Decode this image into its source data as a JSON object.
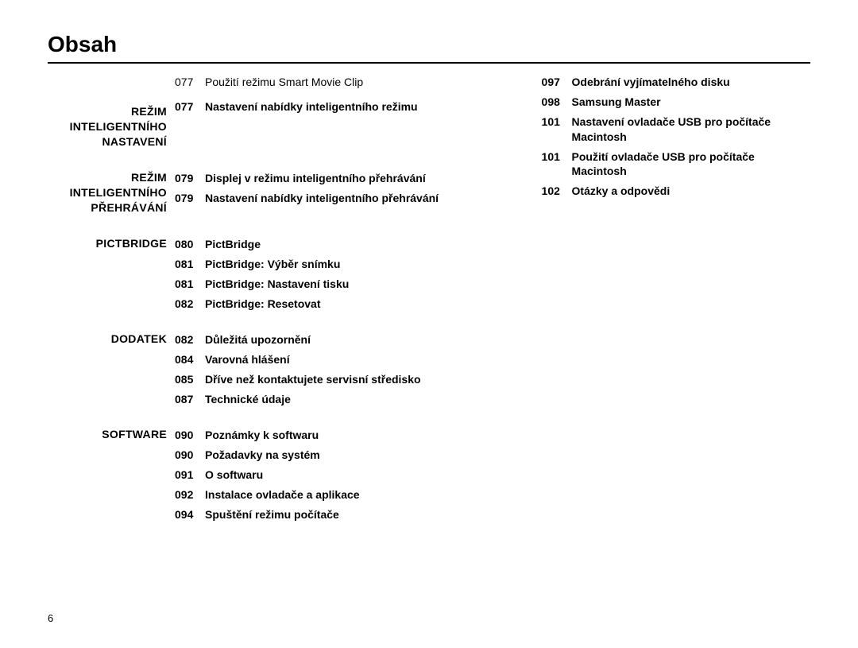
{
  "title": "Obsah",
  "page_number": "6",
  "left_sections": [
    {
      "label_lines": [
        "",
        "",
        "REŽIM",
        "INTELIGENTNÍHO",
        "NASTAVENÍ"
      ],
      "entries": [
        {
          "page": "077",
          "bold": false,
          "title": "Použití režimu Smart Movie Clip"
        },
        {
          "page": "",
          "bold": false,
          "title": ""
        },
        {
          "page": "077",
          "bold": true,
          "title": "Nastavení nabídky inteligentního režimu"
        }
      ]
    },
    {
      "label_lines": [
        "REŽIM",
        "INTELIGENTNÍHO",
        "PŘEHRÁVÁNÍ"
      ],
      "entries": [
        {
          "page": "079",
          "bold": true,
          "title": "Displej v režimu inteligentního přehrávání"
        },
        {
          "page": "079",
          "bold": true,
          "title": "Nastavení nabídky inteligentního přehrávání"
        }
      ]
    },
    {
      "label_lines": [
        "PICTBRIDGE"
      ],
      "entries": [
        {
          "page": "080",
          "bold": true,
          "title": "PictBridge"
        },
        {
          "page": "081",
          "bold": true,
          "title": "PictBridge: Výběr snímku"
        },
        {
          "page": "081",
          "bold": true,
          "title": "PictBridge: Nastavení tisku"
        },
        {
          "page": "082",
          "bold": true,
          "title": "PictBridge: Resetovat"
        }
      ]
    },
    {
      "label_lines": [
        "DODATEK"
      ],
      "entries": [
        {
          "page": "082",
          "bold": true,
          "title": "Důležitá upozornění"
        },
        {
          "page": "084",
          "bold": true,
          "title": "Varovná hlášení"
        },
        {
          "page": "085",
          "bold": true,
          "title": "Dříve než kontaktujete servisní středisko"
        },
        {
          "page": "087",
          "bold": true,
          "title": "Technické údaje"
        }
      ]
    },
    {
      "label_lines": [
        "SOFTWARE"
      ],
      "entries": [
        {
          "page": "090",
          "bold": true,
          "title": "Poznámky k softwaru"
        },
        {
          "page": "090",
          "bold": true,
          "title": "Požadavky na systém"
        },
        {
          "page": "091",
          "bold": true,
          "title": "O softwaru"
        },
        {
          "page": "092",
          "bold": true,
          "title": "Instalace ovladače a aplikace"
        },
        {
          "page": "094",
          "bold": true,
          "title": "Spuštění režimu počítače"
        }
      ]
    }
  ],
  "right_entries": [
    {
      "page": "097",
      "bold": true,
      "title": "Odebrání vyjímatelného disku"
    },
    {
      "page": "098",
      "bold": true,
      "title": "Samsung Master"
    },
    {
      "page": "101",
      "bold": true,
      "title": "Nastavení ovladače USB pro počítače Macintosh"
    },
    {
      "page": "101",
      "bold": true,
      "title": "Použití ovladače USB pro počítače Macintosh"
    },
    {
      "page": "102",
      "bold": true,
      "title": "Otázky a odpovědi"
    }
  ]
}
